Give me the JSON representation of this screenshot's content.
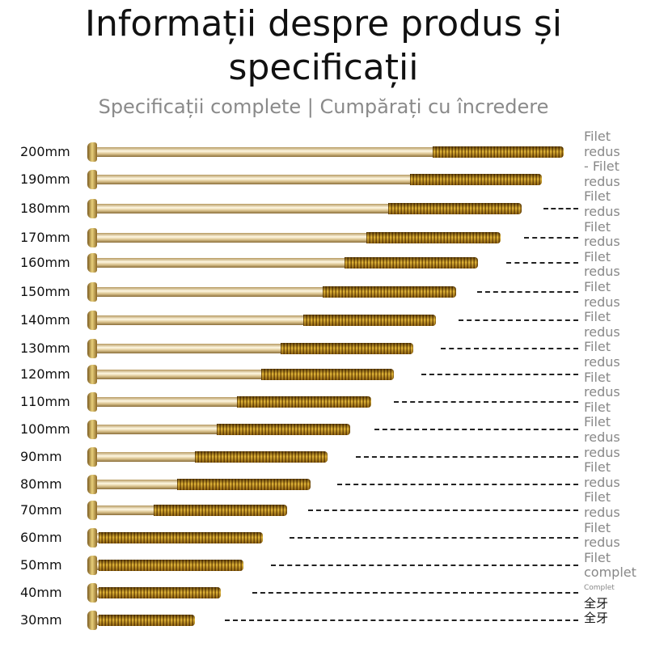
{
  "title_line1": "Informații despre produs și",
  "title_line2": "specificații",
  "subtitle": "Specificații complete | Cumpărați cu încredere",
  "rows": [
    {
      "size": "200mm",
      "thread": "partial"
    },
    {
      "size": "190mm",
      "thread": "partial"
    },
    {
      "size": "180mm",
      "thread": "partial"
    },
    {
      "size": "170mm",
      "thread": "partial"
    },
    {
      "size": "160mm",
      "thread": "partial"
    },
    {
      "size": "150mm",
      "thread": "partial"
    },
    {
      "size": "140mm",
      "thread": "partial"
    },
    {
      "size": "130mm",
      "thread": "partial"
    },
    {
      "size": "120mm",
      "thread": "partial"
    },
    {
      "size": "110mm",
      "thread": "partial"
    },
    {
      "size": "100mm",
      "thread": "partial"
    },
    {
      "size": "90mm",
      "thread": "partial"
    },
    {
      "size": "80mm",
      "thread": "partial"
    },
    {
      "size": "70mm",
      "thread": "partial"
    },
    {
      "size": "60mm",
      "thread": "full"
    },
    {
      "size": "50mm",
      "thread": "full"
    },
    {
      "size": "40mm",
      "thread": "full"
    },
    {
      "size": "30mm",
      "thread": "full"
    }
  ],
  "labels": [
    "Filet",
    "redus",
    "- Filet",
    "redus",
    "Filet",
    "redus",
    "Filet",
    "redus",
    "Filet",
    "redus",
    "Filet",
    "redus",
    "Filet",
    "redus",
    "Filet",
    "redus",
    "Filet",
    "redus",
    "Filet",
    "Filet",
    "redus",
    "redus",
    "Filet",
    "redus",
    "Filet",
    "redus",
    "Filet",
    "redus",
    "Filet",
    "complet",
    "Complet",
    "全牙",
    "全牙"
  ],
  "colors": {
    "title": "#111111",
    "subtitle": "#8a8a8a",
    "label": "#888888",
    "brass": "#e9cf6b"
  }
}
